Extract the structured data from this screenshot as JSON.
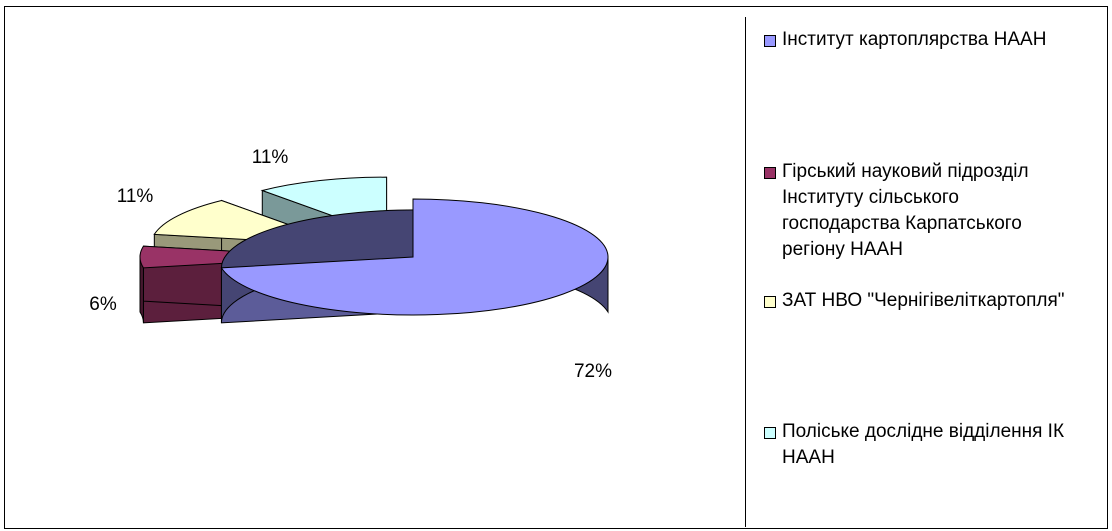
{
  "chart_data": {
    "type": "pie",
    "style": "3d-exploded",
    "legend_position": "right",
    "series": [
      {
        "name": "Інститут картоплярства НААН",
        "value": 72,
        "label": "72%",
        "color": "#9999ff"
      },
      {
        "name": "Гірський науковий підрозділ Інституту сільського господарства Карпатського регіону НААН",
        "value": 6,
        "label": "6%",
        "color": "#993366"
      },
      {
        "name": "ЗАТ НВО \"Чернігівеліткартопля\"",
        "value": 11,
        "label": "11%",
        "color": "#ffffcc"
      },
      {
        "name": "Поліське дослідне відділення ІК НААН",
        "value": 11,
        "label": "11%",
        "color": "#ccffff"
      }
    ],
    "legend_lines": [
      "Інститут картоплярства НААН",
      "Гірський науковий підрозділ\nІнституту сільського\nгосподарства Карпатського\nрегіону НААН",
      "ЗАТ НВО \"Чернігівеліткартопля\"",
      "Поліське дослідне відділення ІК\nНААН"
    ]
  }
}
